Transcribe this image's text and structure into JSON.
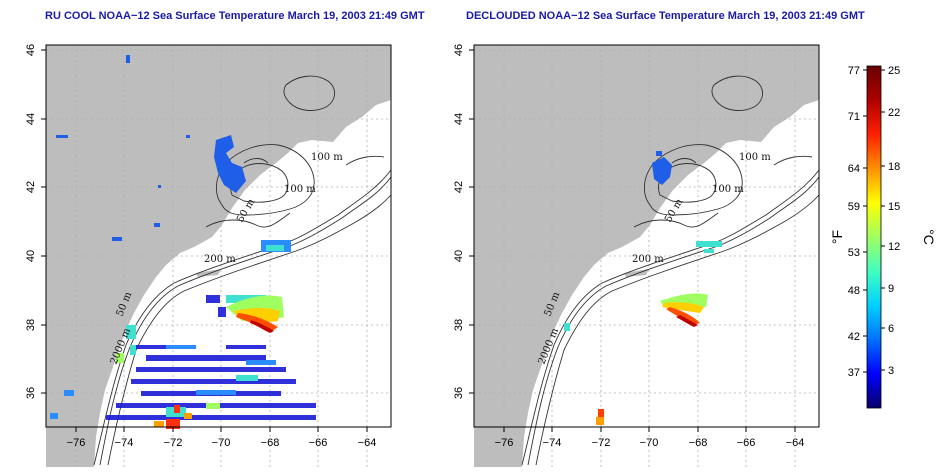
{
  "panels": [
    {
      "title": "RU COOL NOAA−12 Sea Surface Temperature March 19, 2003 21:49 GMT"
    },
    {
      "title": "DECLOUDED NOAA−12 Sea Surface Temperature March 19, 2003 21:49 GMT"
    }
  ],
  "map": {
    "lon_ticks": [
      "−76",
      "−74",
      "−72",
      "−70",
      "−68",
      "−66",
      "−64"
    ],
    "lat_ticks": [
      "36",
      "38",
      "40",
      "42",
      "44",
      "46"
    ],
    "contour_labels": [
      "100 m",
      "100 m",
      "50 m",
      "200 m",
      "50 m",
      "2000 m"
    ],
    "colors": {
      "land": "#bdbdbd",
      "ocean": "#ffffff",
      "grid": "#b0b0b0",
      "contour": "#333333"
    }
  },
  "colorbar": {
    "f_ticks": [
      "77",
      "71",
      "64",
      "59",
      "53",
      "48",
      "42",
      "37"
    ],
    "c_ticks": [
      "25",
      "22",
      "18",
      "15",
      "12",
      "9",
      "6",
      "3"
    ],
    "f_label": "°F",
    "c_label": "°C",
    "colors": [
      "#08006a",
      "#0000ff",
      "#0070ff",
      "#00d0ff",
      "#40ffc0",
      "#a0ff60",
      "#ffff00",
      "#ff9000",
      "#ff2000",
      "#b00000",
      "#6a0000"
    ]
  }
}
